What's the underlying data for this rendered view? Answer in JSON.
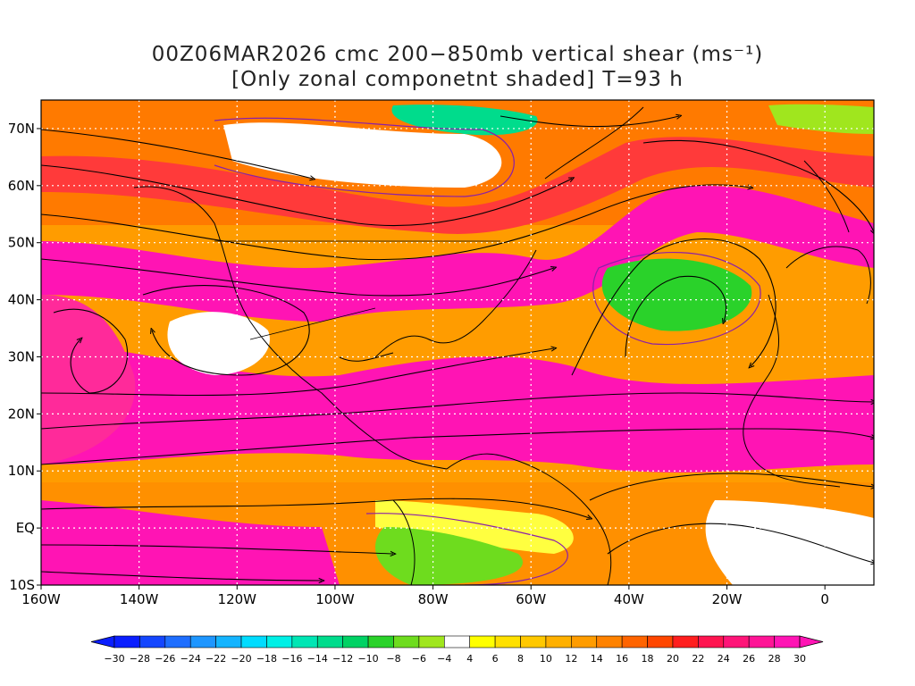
{
  "title": {
    "line1": "00Z06MAR2026 cmc 200−850mb vertical shear (ms⁻¹)",
    "line2": "[Only zonal componetnt shaded] T=93 h"
  },
  "map_extent": {
    "lon_min": -160,
    "lon_max": 10,
    "lat_min": -10,
    "lat_max": 75
  },
  "lat_ticks": [
    {
      "value": 70,
      "label": "70N"
    },
    {
      "value": 60,
      "label": "60N"
    },
    {
      "value": 50,
      "label": "50N"
    },
    {
      "value": 40,
      "label": "40N"
    },
    {
      "value": 30,
      "label": "30N"
    },
    {
      "value": 20,
      "label": "20N"
    },
    {
      "value": 10,
      "label": "10N"
    },
    {
      "value": 0,
      "label": "EQ"
    },
    {
      "value": -10,
      "label": "10S"
    }
  ],
  "lon_ticks": [
    {
      "value": -160,
      "label": "160W"
    },
    {
      "value": -140,
      "label": "140W"
    },
    {
      "value": -120,
      "label": "120W"
    },
    {
      "value": -100,
      "label": "100W"
    },
    {
      "value": -80,
      "label": "80W"
    },
    {
      "value": -60,
      "label": "60W"
    },
    {
      "value": -40,
      "label": "40W"
    },
    {
      "value": -20,
      "label": "20W"
    },
    {
      "value": 0,
      "label": "0"
    }
  ],
  "colorbar": {
    "labels": [
      "-30",
      "-28",
      "-26",
      "-24",
      "-22",
      "-20",
      "-18",
      "-16",
      "-14",
      "-12",
      "-10",
      "-8",
      "-6",
      "-4",
      "4",
      "6",
      "8",
      "10",
      "12",
      "14",
      "16",
      "18",
      "20",
      "22",
      "24",
      "26",
      "28",
      "30"
    ],
    "colors": [
      "#0a1eff",
      "#1446ff",
      "#1e6eff",
      "#1e96ff",
      "#14b4ff",
      "#00dcff",
      "#00f0e6",
      "#00e6b4",
      "#00dc8c",
      "#00d264",
      "#2ad22a",
      "#6edc1e",
      "#a0e61e",
      "#ffffff",
      "#ffff00",
      "#ffe000",
      "#ffc800",
      "#ffb000",
      "#ff9c00",
      "#ff8200",
      "#ff6400",
      "#ff4600",
      "#ff1e1e",
      "#ff1450",
      "#ff1478",
      "#ff1496",
      "#ff14b4"
    ],
    "low_end_color": "#0a1eff",
    "high_end_color": "#ff14b4"
  },
  "colors": {
    "coast": "#000000",
    "zero_contour": "#8b1fa8",
    "grid": "#ffffff"
  }
}
